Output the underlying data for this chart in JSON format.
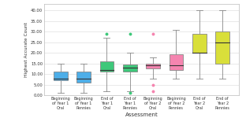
{
  "title": "",
  "xlabel": "Assessment",
  "ylabel": "Highest Accurate Count",
  "ylim": [
    0.0,
    43.0
  ],
  "yticks": [
    0.0,
    5.0,
    10.0,
    15.0,
    20.0,
    25.0,
    30.0,
    35.0,
    40.0
  ],
  "categories": [
    "Beginning\nof Year 1\nOral",
    "Beginning\nof Year 1\nPennies",
    "End of\nYear 1\nOral",
    "End of\nYear 1\nPennies",
    "Beginning\nof Year 2\nOral",
    "Beginning\nof Year 2\nPennies",
    "End of\nYear 2\nOral",
    "End of\nYear 2\nPennies"
  ],
  "colors": [
    "#4daee8",
    "#4daee8",
    "#3ec87a",
    "#3ec87a",
    "#f585b0",
    "#f585b0",
    "#d9df3a",
    "#d9df3a"
  ],
  "box_data": [
    {
      "q1": 7.0,
      "median": 8.0,
      "q3": 11.0,
      "whislo": 1.0,
      "whishi": 15.0,
      "fliers_high": [],
      "fliers_low": []
    },
    {
      "q1": 6.0,
      "median": 8.0,
      "q3": 11.0,
      "whislo": 1.0,
      "whishi": 15.0,
      "fliers_high": [],
      "fliers_low": []
    },
    {
      "q1": 11.0,
      "median": 12.0,
      "q3": 16.0,
      "whislo": 2.0,
      "whishi": 27.0,
      "fliers_high": [
        29.0
      ],
      "fliers_low": []
    },
    {
      "q1": 11.0,
      "median": 13.0,
      "q3": 14.5,
      "whislo": 2.0,
      "whishi": 20.0,
      "fliers_high": [
        29.0
      ],
      "fliers_low": [
        1.0
      ]
    },
    {
      "q1": 12.5,
      "median": 14.0,
      "q3": 15.0,
      "whislo": 8.0,
      "whishi": 18.0,
      "fliers_high": [
        29.0
      ],
      "fliers_low": [
        5.0,
        2.0
      ]
    },
    {
      "q1": 12.0,
      "median": 14.0,
      "q3": 19.5,
      "whislo": 8.0,
      "whishi": 31.0,
      "fliers_high": [],
      "fliers_low": []
    },
    {
      "q1": 20.0,
      "median": 20.0,
      "q3": 29.0,
      "whislo": 8.0,
      "whishi": 40.0,
      "fliers_high": [],
      "fliers_low": []
    },
    {
      "q1": 15.0,
      "median": 25.0,
      "q3": 30.0,
      "whislo": 8.0,
      "whishi": 40.0,
      "fliers_high": [],
      "fliers_low": []
    }
  ],
  "background_color": "#ffffff",
  "grid_color": "#e0e0e0",
  "box_width": 0.6,
  "figsize": [
    3.12,
    1.78
  ],
  "dpi": 100
}
